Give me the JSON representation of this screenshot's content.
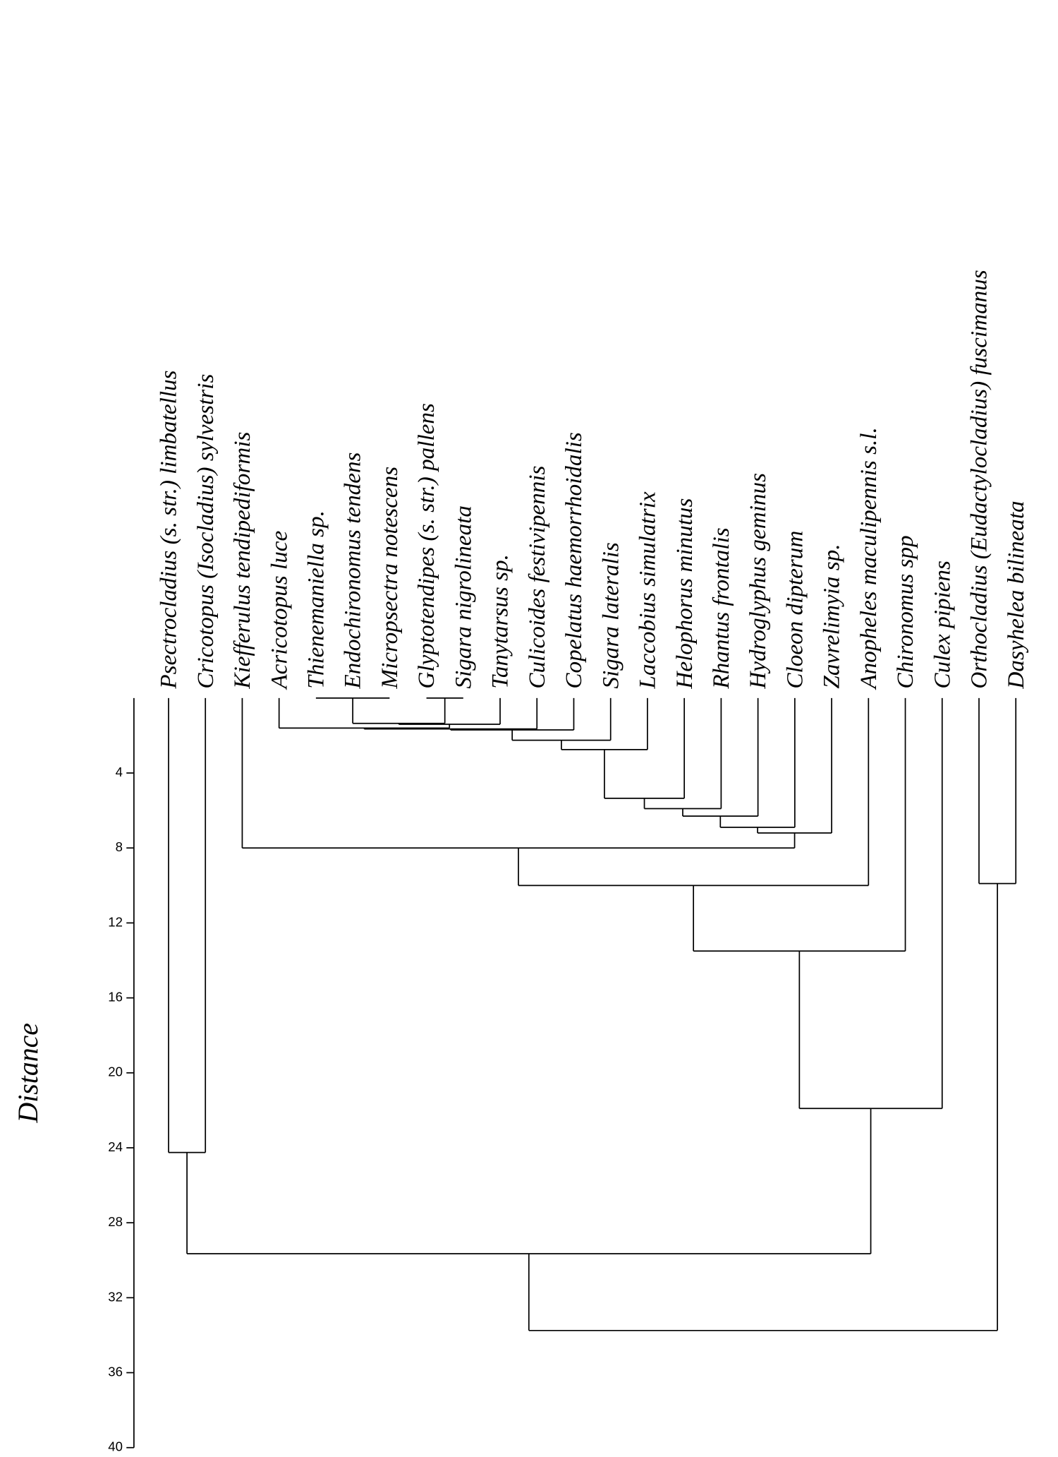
{
  "chart_data": {
    "type": "dendrogram",
    "y_label": "Distance",
    "ylim": [
      0,
      40
    ],
    "yticks": [
      4,
      8,
      12,
      16,
      20,
      24,
      28,
      32,
      36,
      40
    ],
    "tree": {
      "height": 33.75,
      "children": [
        {
          "height": 29.65,
          "children": [
            {
              "height": 24.25,
              "children": [
                {
                  "label": "Psectrocladius (s. str.) limbatellus"
                },
                {
                  "label": "Cricotopus (Isocladius) sylvestris"
                }
              ]
            },
            {
              "height": 21.9,
              "children": [
                {
                  "height": 13.5,
                  "children": [
                    {
                      "height": 10,
                      "children": [
                        {
                          "height": 8,
                          "children": [
                            {
                              "label": "Kiefferulus tendipediformis"
                            },
                            {
                              "height": 7.2,
                              "children": [
                                {
                                  "height": 6.9,
                                  "children": [
                                    {
                                      "height": 6.3,
                                      "children": [
                                        {
                                          "height": 5.9,
                                          "children": [
                                            {
                                              "height": 5.35,
                                              "children": [
                                                {
                                                  "height": 2.75,
                                                  "children": [
                                                    {
                                                      "height": 2.25,
                                                      "children": [
                                                        {
                                                          "height": 1.7,
                                                          "children": [
                                                            {
                                                              "height": 1.65,
                                                              "children": [
                                                                {
                                                                  "height": 1.6,
                                                                  "children": [
                                                                    {
                                                                      "label": "Acricotopus luce"
                                                                    },
                                                                    {
                                                                      "height": 1.4,
                                                                      "children": [
                                                                        {
                                                                          "height": 1.35,
                                                                          "children": [
                                                                            {
                                                                              "height": 0,
                                                                              "children": [
                                                                                {
                                                                                  "label": "Thienemaniella sp."
                                                                                },
                                                                                {
                                                                                  "label": "Endochironomus tendens"
                                                                                },
                                                                                {
                                                                                  "label": "Micropsectra notescens"
                                                                                }
                                                                              ]
                                                                            },
                                                                            {
                                                                              "height": 0,
                                                                              "children": [
                                                                                {
                                                                                  "label": "Glyptotendipes (s. str.) pallens"
                                                                                },
                                                                                {
                                                                                  "label": "Sigara nigrolineata"
                                                                                }
                                                                              ]
                                                                            }
                                                                          ]
                                                                        },
                                                                        {
                                                                          "label": "Tanytarsus sp."
                                                                        }
                                                                      ]
                                                                    }
                                                                  ]
                                                                },
                                                                {
                                                                  "label": "Culicoides festivipennis"
                                                                }
                                                              ]
                                                            },
                                                            {
                                                              "label": "Copelatus haemorrhoidalis"
                                                            }
                                                          ]
                                                        },
                                                        {
                                                          "label": "Sigara lateralis"
                                                        }
                                                      ]
                                                    },
                                                    {
                                                      "label": "Laccobius simulatrix"
                                                    }
                                                  ]
                                                },
                                                {
                                                  "label": "Helophorus minutus"
                                                }
                                              ]
                                            },
                                            {
                                              "label": "Rhantus frontalis"
                                            }
                                          ]
                                        },
                                        {
                                          "label": "Hydroglyphus geminus"
                                        }
                                      ]
                                    },
                                    {
                                      "label": "Cloeon dipterum"
                                    }
                                  ]
                                },
                                {
                                  "label": "Zavrelimyia sp."
                                }
                              ]
                            }
                          ]
                        },
                        {
                          "label": "Anopheles maculipennis s.l."
                        }
                      ]
                    },
                    {
                      "label": "Chironomus spp"
                    }
                  ]
                },
                {
                  "label": "Culex pipiens"
                }
              ]
            }
          ]
        },
        {
          "height": 9.9,
          "children": [
            {
              "label": "Orthocladius (Eudactylocladius) fuscimanus"
            },
            {
              "label": "Dasyhelea bilineata"
            }
          ]
        }
      ]
    }
  }
}
